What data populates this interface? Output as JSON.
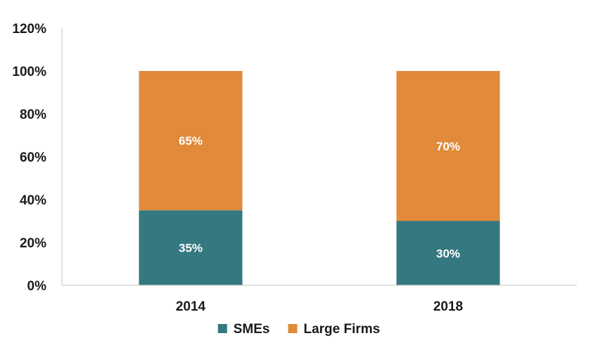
{
  "chart_data": {
    "type": "bar",
    "stacked": true,
    "categories": [
      "2014",
      "2018"
    ],
    "series": [
      {
        "name": "SMEs",
        "values": [
          35,
          30
        ],
        "labels": [
          "35%",
          "30%"
        ],
        "color": "#347880"
      },
      {
        "name": "Large Firms",
        "values": [
          65,
          70
        ],
        "labels": [
          "65%",
          "70%"
        ],
        "color": "#e08a3a"
      }
    ],
    "y_ticks": [
      0,
      20,
      40,
      60,
      80,
      100,
      120
    ],
    "y_tick_labels": [
      "0%",
      "20%",
      "40%",
      "60%",
      "80%",
      "100%",
      "120%"
    ],
    "ylim": [
      0,
      120
    ],
    "grid": false,
    "legend": "bottom"
  }
}
